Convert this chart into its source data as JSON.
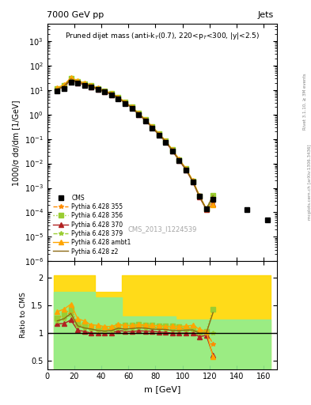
{
  "title_top": "7000 GeV pp",
  "title_right": "Jets",
  "plot_title": "Pruned dijet mass (anti-k_{T}(0.7), 220<p_{T}<300, |y|<2.5)",
  "watermark": "CMS_2013_I1224539",
  "ylabel_main": "1000/σ dσ/dm [1/GeV]",
  "ylabel_ratio": "Ratio to CMS",
  "xlabel": "m [GeV]",
  "right_label": "Rivet 3.1.10, ≥ 3M events",
  "right_label2": "mcplots.cern.ch [arXiv:1306.3436]",
  "xlim": [
    0,
    170
  ],
  "ylim_main": [
    1e-06,
    5000.0
  ],
  "ylim_ratio": [
    0.35,
    2.3
  ],
  "cms_x": [
    7.5,
    12.5,
    17.5,
    22.5,
    27.5,
    32.5,
    37.5,
    42.5,
    47.5,
    52.5,
    57.5,
    62.5,
    67.5,
    72.5,
    77.5,
    82.5,
    87.5,
    92.5,
    97.5,
    102.5,
    107.5,
    112.5,
    117.5,
    122.5,
    147.5,
    162.5
  ],
  "cms_y": [
    9.0,
    11.5,
    21.0,
    19.0,
    16.0,
    13.5,
    10.5,
    8.5,
    6.5,
    4.5,
    2.8,
    1.8,
    0.95,
    0.55,
    0.28,
    0.145,
    0.075,
    0.032,
    0.013,
    0.0055,
    0.00175,
    0.00045,
    0.000135,
    0.00035,
    0.00013,
    5e-05
  ],
  "pythia_355_x": [
    7.5,
    12.5,
    17.5,
    22.5,
    27.5,
    32.5,
    37.5,
    42.5,
    47.5,
    52.5,
    57.5,
    62.5,
    67.5,
    72.5,
    77.5,
    82.5,
    87.5,
    92.5,
    97.5,
    102.5,
    107.5,
    112.5,
    117.5,
    122.5
  ],
  "pythia_355_y": [
    11.5,
    15.0,
    29.0,
    22.0,
    18.0,
    14.5,
    11.0,
    9.0,
    7.0,
    5.0,
    3.1,
    2.0,
    1.08,
    0.62,
    0.31,
    0.16,
    0.082,
    0.035,
    0.014,
    0.006,
    0.0019,
    0.00045,
    0.00014,
    0.00028
  ],
  "pythia_356_x": [
    7.5,
    12.5,
    17.5,
    22.5,
    27.5,
    32.5,
    37.5,
    42.5,
    47.5,
    52.5,
    57.5,
    62.5,
    67.5,
    72.5,
    77.5,
    82.5,
    87.5,
    92.5,
    97.5,
    102.5,
    107.5,
    112.5,
    117.5,
    122.5
  ],
  "pythia_356_y": [
    11.5,
    15.5,
    30.0,
    22.5,
    18.5,
    15.0,
    11.5,
    9.2,
    7.1,
    5.1,
    3.2,
    2.05,
    1.1,
    0.63,
    0.32,
    0.165,
    0.085,
    0.036,
    0.0145,
    0.006,
    0.0019,
    0.00046,
    0.00014,
    0.0005
  ],
  "pythia_370_x": [
    7.5,
    12.5,
    17.5,
    22.5,
    27.5,
    32.5,
    37.5,
    42.5,
    47.5,
    52.5,
    57.5,
    62.5,
    67.5,
    72.5,
    77.5,
    82.5,
    87.5,
    92.5,
    97.5,
    102.5,
    107.5,
    112.5,
    117.5,
    122.5
  ],
  "pythia_370_y": [
    10.5,
    13.5,
    26.0,
    20.0,
    16.5,
    13.5,
    10.5,
    8.5,
    6.5,
    4.7,
    2.9,
    1.85,
    0.99,
    0.57,
    0.29,
    0.148,
    0.076,
    0.032,
    0.013,
    0.0055,
    0.00175,
    0.00042,
    0.00013,
    0.00021
  ],
  "pythia_379_x": [
    7.5,
    12.5,
    17.5,
    22.5,
    27.5,
    32.5,
    37.5,
    42.5,
    47.5,
    52.5,
    57.5,
    62.5,
    67.5,
    72.5,
    77.5,
    82.5,
    87.5,
    92.5,
    97.5,
    102.5,
    107.5,
    112.5,
    117.5,
    122.5
  ],
  "pythia_379_y": [
    11.0,
    14.5,
    28.0,
    21.5,
    17.5,
    14.5,
    11.0,
    8.8,
    6.8,
    4.9,
    3.0,
    1.95,
    1.05,
    0.6,
    0.31,
    0.158,
    0.081,
    0.034,
    0.0138,
    0.0058,
    0.00185,
    0.00045,
    0.000135,
    0.00035
  ],
  "pythia_ambt1_x": [
    7.5,
    12.5,
    17.5,
    22.5,
    27.5,
    32.5,
    37.5,
    42.5,
    47.5,
    52.5,
    57.5,
    62.5,
    67.5,
    72.5,
    77.5,
    82.5,
    87.5,
    92.5,
    97.5,
    102.5,
    107.5,
    112.5,
    117.5,
    122.5
  ],
  "pythia_ambt1_y": [
    12.5,
    16.5,
    32.0,
    24.0,
    19.5,
    15.5,
    12.0,
    9.5,
    7.3,
    5.2,
    3.2,
    2.05,
    1.1,
    0.63,
    0.32,
    0.164,
    0.084,
    0.036,
    0.0146,
    0.0062,
    0.002,
    0.00048,
    0.00014,
    0.0002
  ],
  "pythia_z2_x": [
    7.5,
    12.5,
    17.5,
    22.5,
    27.5,
    32.5,
    37.5,
    42.5,
    47.5,
    52.5,
    57.5,
    62.5,
    67.5,
    72.5,
    77.5,
    82.5,
    87.5,
    92.5,
    97.5,
    102.5,
    107.5,
    112.5,
    117.5,
    122.5
  ],
  "pythia_z2_y": [
    11.0,
    14.5,
    28.5,
    21.5,
    17.5,
    14.5,
    11.0,
    8.8,
    6.8,
    4.9,
    3.0,
    1.95,
    1.04,
    0.6,
    0.3,
    0.155,
    0.08,
    0.0335,
    0.0136,
    0.0058,
    0.00185,
    0.00045,
    0.000135,
    0.00048
  ],
  "color_355": "#FF8C00",
  "color_356": "#9ACD32",
  "color_370": "#B22222",
  "color_379": "#9ACD32",
  "color_ambt1": "#FFA500",
  "color_z2": "#8B6914",
  "ratio_band_yellow_x": [
    5,
    15,
    15,
    35,
    35,
    55,
    55,
    95,
    95,
    125,
    125,
    165
  ],
  "ratio_band_yellow_y_lo": [
    0.5,
    0.5,
    0.5,
    0.5,
    0.5,
    0.5,
    0.5,
    0.5,
    0.5,
    0.5,
    0.5,
    0.5
  ],
  "ratio_band_yellow_y_hi": [
    2.0,
    2.0,
    2.0,
    2.0,
    1.7,
    1.7,
    2.0,
    2.0,
    2.0,
    2.0,
    2.0,
    2.0
  ],
  "ratio_band_green_x": [
    5,
    15,
    15,
    35,
    35,
    55,
    55,
    95,
    95,
    125,
    125,
    165
  ],
  "ratio_band_green_y_lo": [
    0.5,
    0.5,
    0.5,
    0.5,
    0.5,
    0.5,
    0.5,
    0.5,
    0.5,
    0.5,
    0.5,
    0.5
  ],
  "ratio_band_green_y_hi": [
    1.7,
    1.7,
    1.7,
    1.65,
    1.65,
    1.3,
    1.3,
    1.25,
    1.25,
    1.2,
    1.2,
    1.2
  ]
}
